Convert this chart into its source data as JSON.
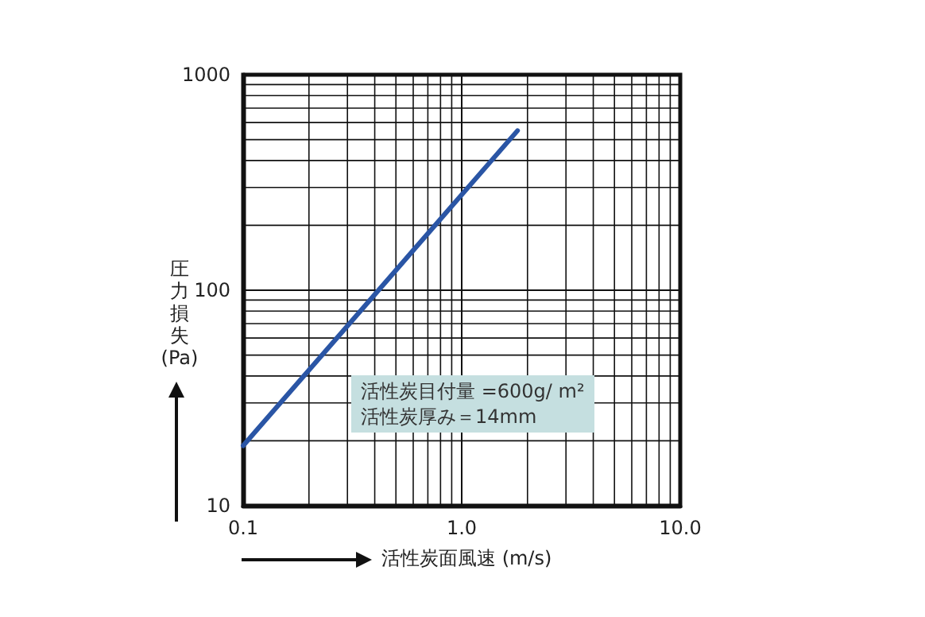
{
  "chart_data": {
    "type": "line",
    "xlabel": "活性炭面風速 (m/s)",
    "ylabel": "圧力損失(Pa)",
    "log": "xy",
    "x": [
      0.1,
      1.8
    ],
    "series": [
      {
        "color": "#2a55a5",
        "values": [
          19,
          550
        ]
      }
    ],
    "xlim": [
      0.1,
      10
    ],
    "xticks": [
      0.1,
      {
        "value": 1,
        "label": "1.0"
      },
      {
        "value": 10,
        "label": "10.0"
      }
    ],
    "ylim": [
      10,
      1000
    ],
    "yticks": [
      10,
      100,
      1000
    ],
    "grid": true,
    "marker": "none",
    "line_style": "solid",
    "annotations": [
      "活性炭目付量 =600g/ m²",
      "活性炭厚み＝14mm"
    ]
  }
}
